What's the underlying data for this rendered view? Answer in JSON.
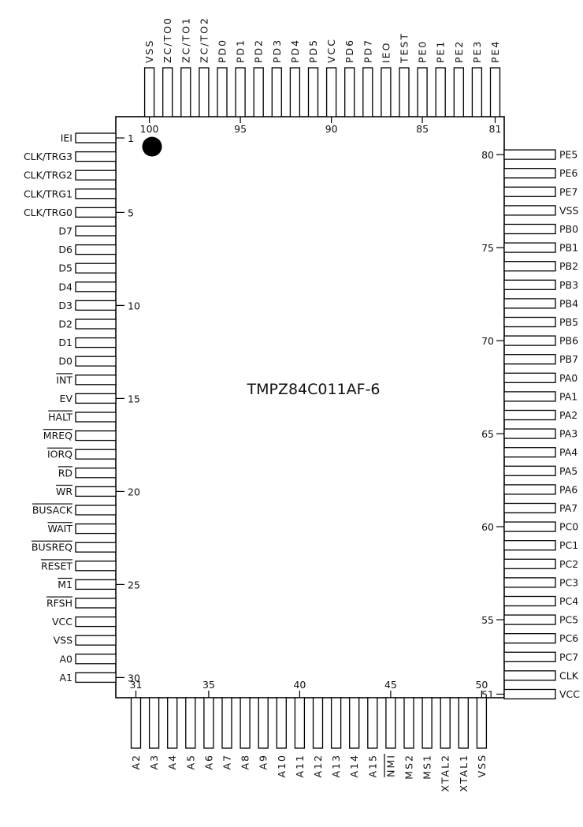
{
  "chip": {
    "part_number": "TMPZ84C011AF-6",
    "pin1_marker": "filled-circle"
  },
  "left_pins": [
    {
      "num": 1,
      "name": "IEI",
      "overbar": false
    },
    {
      "num": 2,
      "name": "CLK/TRG3",
      "overbar": false
    },
    {
      "num": 3,
      "name": "CLK/TRG2",
      "overbar": false
    },
    {
      "num": 4,
      "name": "CLK/TRG1",
      "overbar": false
    },
    {
      "num": 5,
      "name": "CLK/TRG0",
      "overbar": false
    },
    {
      "num": 6,
      "name": "D7",
      "overbar": false
    },
    {
      "num": 7,
      "name": "D6",
      "overbar": false
    },
    {
      "num": 8,
      "name": "D5",
      "overbar": false
    },
    {
      "num": 9,
      "name": "D4",
      "overbar": false
    },
    {
      "num": 10,
      "name": "D3",
      "overbar": false
    },
    {
      "num": 11,
      "name": "D2",
      "overbar": false
    },
    {
      "num": 12,
      "name": "D1",
      "overbar": false
    },
    {
      "num": 13,
      "name": "D0",
      "overbar": false
    },
    {
      "num": 14,
      "name": "INT",
      "overbar": true
    },
    {
      "num": 15,
      "name": "EV",
      "overbar": false
    },
    {
      "num": 16,
      "name": "HALT",
      "overbar": true
    },
    {
      "num": 17,
      "name": "MREQ",
      "overbar": true
    },
    {
      "num": 18,
      "name": "IORQ",
      "overbar": true
    },
    {
      "num": 19,
      "name": "RD",
      "overbar": true
    },
    {
      "num": 20,
      "name": "WR",
      "overbar": true
    },
    {
      "num": 21,
      "name": "BUSACK",
      "overbar": true
    },
    {
      "num": 22,
      "name": "WAIT",
      "overbar": true
    },
    {
      "num": 23,
      "name": "BUSREQ",
      "overbar": true
    },
    {
      "num": 24,
      "name": "RESET",
      "overbar": true
    },
    {
      "num": 25,
      "name": "M1",
      "overbar": true
    },
    {
      "num": 26,
      "name": "RFSH",
      "overbar": true
    },
    {
      "num": 27,
      "name": "VCC",
      "overbar": false
    },
    {
      "num": 28,
      "name": "VSS",
      "overbar": false
    },
    {
      "num": 29,
      "name": "A0",
      "overbar": false
    },
    {
      "num": 30,
      "name": "A1",
      "overbar": false
    }
  ],
  "bottom_pins": [
    {
      "num": 31,
      "name": "A2",
      "overbar": false
    },
    {
      "num": 32,
      "name": "A3",
      "overbar": false
    },
    {
      "num": 33,
      "name": "A4",
      "overbar": false
    },
    {
      "num": 34,
      "name": "A5",
      "overbar": false
    },
    {
      "num": 35,
      "name": "A6",
      "overbar": false
    },
    {
      "num": 36,
      "name": "A7",
      "overbar": false
    },
    {
      "num": 37,
      "name": "A8",
      "overbar": false
    },
    {
      "num": 38,
      "name": "A9",
      "overbar": false
    },
    {
      "num": 39,
      "name": "A10",
      "overbar": false
    },
    {
      "num": 40,
      "name": "A11",
      "overbar": false
    },
    {
      "num": 41,
      "name": "A12",
      "overbar": false
    },
    {
      "num": 42,
      "name": "A13",
      "overbar": false
    },
    {
      "num": 43,
      "name": "A14",
      "overbar": false
    },
    {
      "num": 44,
      "name": "A15",
      "overbar": false
    },
    {
      "num": 45,
      "name": "NMI",
      "overbar": true
    },
    {
      "num": 46,
      "name": "MS2",
      "overbar": false
    },
    {
      "num": 47,
      "name": "MS1",
      "overbar": false
    },
    {
      "num": 48,
      "name": "XTAL2",
      "overbar": false
    },
    {
      "num": 49,
      "name": "XTAL1",
      "overbar": false
    },
    {
      "num": 50,
      "name": "VSS",
      "overbar": false
    }
  ],
  "right_pins": [
    {
      "num": 51,
      "name": "VCC",
      "overbar": false
    },
    {
      "num": 52,
      "name": "CLK",
      "overbar": false
    },
    {
      "num": 53,
      "name": "PC7",
      "overbar": false
    },
    {
      "num": 54,
      "name": "PC6",
      "overbar": false
    },
    {
      "num": 55,
      "name": "PC5",
      "overbar": false
    },
    {
      "num": 56,
      "name": "PC4",
      "overbar": false
    },
    {
      "num": 57,
      "name": "PC3",
      "overbar": false
    },
    {
      "num": 58,
      "name": "PC2",
      "overbar": false
    },
    {
      "num": 59,
      "name": "PC1",
      "overbar": false
    },
    {
      "num": 60,
      "name": "PC0",
      "overbar": false
    },
    {
      "num": 61,
      "name": "PA7",
      "overbar": false
    },
    {
      "num": 62,
      "name": "PA6",
      "overbar": false
    },
    {
      "num": 63,
      "name": "PA5",
      "overbar": false
    },
    {
      "num": 64,
      "name": "PA4",
      "overbar": false
    },
    {
      "num": 65,
      "name": "PA3",
      "overbar": false
    },
    {
      "num": 66,
      "name": "PA2",
      "overbar": false
    },
    {
      "num": 67,
      "name": "PA1",
      "overbar": false
    },
    {
      "num": 68,
      "name": "PA0",
      "overbar": false
    },
    {
      "num": 69,
      "name": "PB7",
      "overbar": false
    },
    {
      "num": 70,
      "name": "PB6",
      "overbar": false
    },
    {
      "num": 71,
      "name": "PB5",
      "overbar": false
    },
    {
      "num": 72,
      "name": "PB4",
      "overbar": false
    },
    {
      "num": 73,
      "name": "PB3",
      "overbar": false
    },
    {
      "num": 74,
      "name": "PB2",
      "overbar": false
    },
    {
      "num": 75,
      "name": "PB1",
      "overbar": false
    },
    {
      "num": 76,
      "name": "PB0",
      "overbar": false
    },
    {
      "num": 77,
      "name": "VSS",
      "overbar": false
    },
    {
      "num": 78,
      "name": "PE7",
      "overbar": false
    },
    {
      "num": 79,
      "name": "PE6",
      "overbar": false
    },
    {
      "num": 80,
      "name": "PE5",
      "overbar": false
    }
  ],
  "top_pins": [
    {
      "num": 81,
      "name": "PE4",
      "overbar": false
    },
    {
      "num": 82,
      "name": "PE3",
      "overbar": false
    },
    {
      "num": 83,
      "name": "PE2",
      "overbar": false
    },
    {
      "num": 84,
      "name": "PE1",
      "overbar": false
    },
    {
      "num": 85,
      "name": "PE0",
      "overbar": false
    },
    {
      "num": 86,
      "name": "TEST",
      "overbar": false
    },
    {
      "num": 87,
      "name": "IEO",
      "overbar": false
    },
    {
      "num": 88,
      "name": "PD7",
      "overbar": false
    },
    {
      "num": 89,
      "name": "PD6",
      "overbar": false
    },
    {
      "num": 90,
      "name": "VCC",
      "overbar": false
    },
    {
      "num": 91,
      "name": "PD5",
      "overbar": false
    },
    {
      "num": 92,
      "name": "PD4",
      "overbar": false
    },
    {
      "num": 93,
      "name": "PD3",
      "overbar": false
    },
    {
      "num": 94,
      "name": "PD2",
      "overbar": false
    },
    {
      "num": 95,
      "name": "PD1",
      "overbar": false
    },
    {
      "num": 96,
      "name": "PD0",
      "overbar": false
    },
    {
      "num": 97,
      "name": "ZC/TO2",
      "overbar": false
    },
    {
      "num": 98,
      "name": "ZC/TO1",
      "overbar": false
    },
    {
      "num": 99,
      "name": "ZC/TO0",
      "overbar": false
    },
    {
      "num": 100,
      "name": "VSS",
      "overbar": false
    }
  ],
  "pin_number_labels": {
    "left": [
      1,
      5,
      10,
      15,
      20,
      25,
      30
    ],
    "bottom": [
      31,
      35,
      40,
      45,
      50
    ],
    "right": [
      51,
      55,
      60,
      65,
      70,
      75,
      80
    ],
    "top": [
      81,
      85,
      90,
      95,
      100
    ]
  }
}
